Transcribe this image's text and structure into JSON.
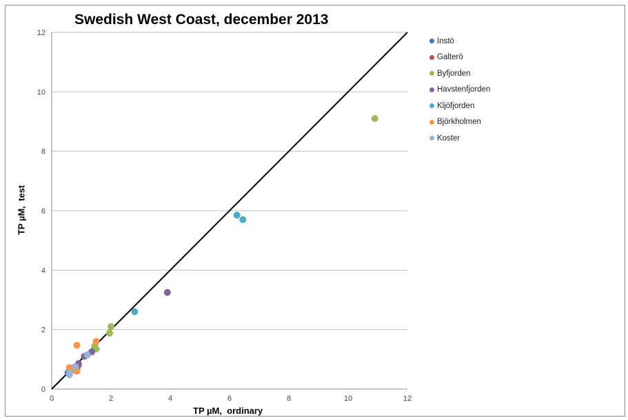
{
  "chart_data": {
    "type": "scatter",
    "title": "Swedish West Coast, december 2013",
    "xlabel": "TP µM,  ordinary",
    "ylabel": "TP µM,  test",
    "xlim": [
      0,
      12
    ],
    "ylim": [
      0,
      12
    ],
    "xticks": [
      "0",
      "2",
      "4",
      "6",
      "8",
      "10",
      "12"
    ],
    "yticks": [
      "0",
      "2",
      "4",
      "6",
      "8",
      "10",
      "12"
    ],
    "grid": "horizontal",
    "legend_position": "right",
    "reference_line": {
      "from": [
        0,
        0
      ],
      "to": [
        12,
        12
      ],
      "color": "#000000"
    },
    "series": [
      {
        "name": "Instö",
        "color": "#4472c4",
        "points": [
          [
            0.55,
            0.55
          ],
          [
            0.7,
            0.7
          ],
          [
            0.8,
            0.75
          ]
        ]
      },
      {
        "name": "Galterö",
        "color": "#c0504d",
        "points": [
          [
            0.75,
            0.65
          ],
          [
            0.85,
            0.65
          ],
          [
            0.9,
            0.8
          ]
        ]
      },
      {
        "name": "Byfjorden",
        "color": "#9bbb59",
        "points": [
          [
            10.9,
            9.1
          ],
          [
            2.0,
            2.1
          ],
          [
            1.95,
            1.88
          ],
          [
            1.5,
            1.35
          ],
          [
            1.45,
            1.45
          ]
        ]
      },
      {
        "name": "Havstenfjorden",
        "color": "#8064a2",
        "points": [
          [
            3.9,
            3.25
          ],
          [
            1.35,
            1.25
          ],
          [
            1.1,
            1.1
          ],
          [
            0.9,
            0.85
          ]
        ]
      },
      {
        "name": "Kljöfjorden",
        "color": "#4bacc6",
        "points": [
          [
            6.25,
            5.85
          ],
          [
            6.45,
            5.7
          ],
          [
            2.8,
            2.6
          ],
          [
            1.2,
            1.15
          ],
          [
            0.6,
            0.6
          ]
        ]
      },
      {
        "name": "Björkholmen",
        "color": "#f79646",
        "points": [
          [
            0.85,
            1.47
          ],
          [
            1.5,
            1.6
          ],
          [
            0.6,
            0.72
          ],
          [
            0.75,
            0.68
          ],
          [
            0.85,
            0.6
          ],
          [
            0.65,
            0.65
          ]
        ]
      },
      {
        "name": "Koster",
        "color": "#95b3d7",
        "points": [
          [
            0.6,
            0.48
          ],
          [
            0.6,
            0.55
          ],
          [
            1.2,
            1.15
          ],
          [
            0.8,
            0.75
          ]
        ]
      }
    ]
  }
}
